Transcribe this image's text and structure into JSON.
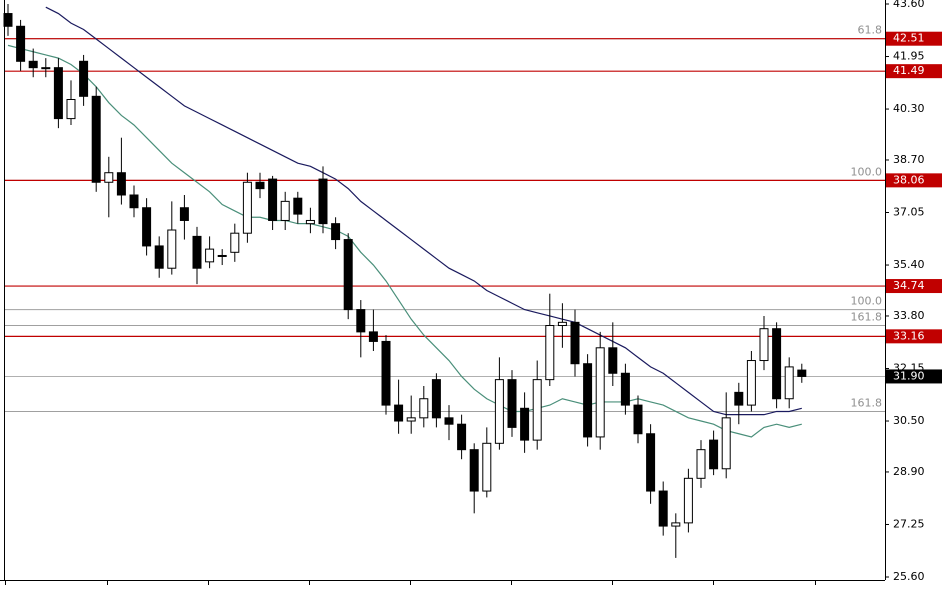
{
  "chart_data": {
    "type": "candlestick",
    "ylim": [
      25.6,
      43.6
    ],
    "yticks": [
      {
        "value": 25.6,
        "label": "25.60"
      },
      {
        "value": 27.25,
        "label": "27.25"
      },
      {
        "value": 28.9,
        "label": "28.90"
      },
      {
        "value": 30.5,
        "label": "30.50"
      },
      {
        "value": 32.15,
        "label": "32.15"
      },
      {
        "value": 33.8,
        "label": "33.80"
      },
      {
        "value": 35.4,
        "label": "35.40"
      },
      {
        "value": 37.05,
        "label": "37.05"
      },
      {
        "value": 38.7,
        "label": "38.70"
      },
      {
        "value": 40.3,
        "label": "40.30"
      },
      {
        "value": 41.95,
        "label": "41.95"
      },
      {
        "value": 43.6,
        "label": "43.60"
      }
    ],
    "open": [
      43.3,
      42.9,
      41.8,
      41.6,
      41.6,
      40.0,
      41.8,
      40.7,
      38.0,
      38.3,
      37.6,
      37.2,
      36.0,
      35.3,
      37.2,
      36.3,
      35.5,
      35.7,
      35.8,
      36.4,
      38.0,
      38.1,
      36.8,
      37.5,
      36.7,
      38.1,
      36.7,
      36.2,
      34.0,
      33.3,
      33.0,
      31.0,
      30.5,
      30.6,
      31.8,
      30.6,
      30.4,
      29.6,
      28.3,
      29.8,
      31.8,
      30.9,
      29.9,
      31.8,
      33.5,
      33.6,
      32.3,
      30.0,
      32.8,
      32.0,
      31.0,
      30.1,
      28.3,
      27.2,
      27.3,
      28.7,
      29.9,
      29.0,
      31.4,
      31.0,
      32.4,
      33.4,
      31.2,
      32.1
    ],
    "high": [
      43.6,
      43.1,
      42.2,
      41.9,
      41.9,
      41.2,
      42.0,
      41.0,
      38.8,
      39.4,
      37.9,
      37.5,
      36.3,
      37.4,
      37.6,
      36.6,
      36.3,
      35.9,
      36.7,
      38.3,
      38.3,
      38.2,
      37.7,
      37.7,
      37.2,
      38.5,
      36.9,
      36.4,
      34.3,
      34.0,
      33.2,
      31.8,
      31.3,
      31.6,
      32.0,
      31.0,
      30.7,
      29.8,
      30.3,
      32.5,
      32.1,
      31.4,
      32.4,
      34.5,
      34.2,
      34.0,
      32.6,
      33.3,
      33.6,
      32.3,
      31.3,
      30.4,
      28.6,
      27.6,
      29.0,
      29.9,
      30.2,
      31.4,
      31.7,
      32.7,
      33.8,
      33.6,
      32.5,
      32.3
    ],
    "low": [
      42.6,
      41.5,
      41.3,
      41.3,
      39.7,
      39.8,
      40.4,
      37.7,
      36.9,
      37.3,
      36.9,
      35.7,
      35.0,
      35.1,
      36.2,
      34.8,
      35.3,
      35.4,
      35.5,
      36.1,
      37.5,
      36.5,
      36.5,
      36.7,
      36.4,
      36.4,
      35.9,
      33.7,
      32.5,
      32.7,
      30.7,
      30.1,
      30.1,
      30.3,
      30.3,
      29.9,
      29.3,
      27.6,
      28.1,
      29.6,
      30.0,
      29.5,
      29.6,
      31.6,
      32.8,
      31.9,
      29.7,
      29.6,
      31.6,
      30.7,
      29.8,
      27.9,
      26.9,
      26.2,
      27.0,
      28.4,
      28.8,
      28.7,
      30.4,
      30.8,
      32.1,
      30.9,
      30.9,
      31.7
    ],
    "close": [
      42.9,
      41.8,
      41.6,
      41.6,
      40.0,
      40.6,
      40.7,
      38.0,
      38.3,
      37.6,
      37.2,
      36.0,
      35.3,
      36.5,
      36.8,
      35.3,
      35.9,
      35.7,
      36.4,
      38.0,
      37.8,
      36.8,
      37.4,
      37.0,
      36.8,
      36.7,
      36.2,
      34.0,
      33.3,
      33.0,
      31.0,
      30.5,
      30.6,
      31.2,
      30.6,
      30.4,
      29.6,
      28.3,
      29.8,
      31.8,
      30.3,
      29.9,
      31.8,
      33.5,
      33.6,
      32.3,
      30.0,
      32.8,
      32.0,
      31.0,
      30.1,
      28.3,
      27.2,
      27.3,
      28.7,
      29.6,
      29.0,
      30.6,
      31.0,
      32.4,
      33.4,
      31.2,
      32.2,
      31.9
    ],
    "series": [
      {
        "color": "#1a1a5e",
        "values": [
          null,
          null,
          null,
          43.5,
          43.3,
          43.0,
          42.8,
          42.5,
          42.2,
          41.9,
          41.6,
          41.3,
          41.0,
          40.7,
          40.4,
          40.2,
          40.0,
          39.8,
          39.6,
          39.4,
          39.2,
          39.0,
          38.8,
          38.6,
          38.5,
          38.3,
          38.1,
          37.8,
          37.4,
          37.1,
          36.8,
          36.5,
          36.2,
          35.9,
          35.6,
          35.3,
          35.1,
          34.9,
          34.6,
          34.4,
          34.2,
          34.0,
          33.9,
          33.8,
          33.7,
          33.6,
          33.4,
          33.2,
          33.0,
          32.8,
          32.5,
          32.2,
          32.0,
          31.7,
          31.4,
          31.1,
          30.8,
          30.7,
          30.7,
          30.7,
          30.7,
          30.8,
          30.8,
          30.9
        ]
      },
      {
        "color": "#4a8f7a",
        "values": [
          42.3,
          42.2,
          42.1,
          42.0,
          41.9,
          41.7,
          41.4,
          41.0,
          40.5,
          40.1,
          39.8,
          39.4,
          39.0,
          38.6,
          38.3,
          38.0,
          37.7,
          37.3,
          37.1,
          36.9,
          36.9,
          36.8,
          36.8,
          36.7,
          36.7,
          36.6,
          36.5,
          36.3,
          35.8,
          35.4,
          34.9,
          34.3,
          33.7,
          33.2,
          32.8,
          32.4,
          31.9,
          31.5,
          31.2,
          31.0,
          30.8,
          30.8,
          30.9,
          31.0,
          31.2,
          31.1,
          31.0,
          31.1,
          31.1,
          31.1,
          31.2,
          31.1,
          31.0,
          30.8,
          30.6,
          30.5,
          30.4,
          30.2,
          30.1,
          30.0,
          30.3,
          30.4,
          30.3,
          30.4
        ]
      }
    ],
    "levels": [
      42.51,
      41.49,
      38.06,
      34.74,
      33.16
    ],
    "level_color": "#c00000",
    "fib_levels": [
      {
        "value": 42.51,
        "label": "61.8"
      },
      {
        "value": 38.06,
        "label": "100.0"
      },
      {
        "value": 34.0,
        "label": "100.0"
      },
      {
        "value": 33.5,
        "label": "161.8"
      },
      {
        "value": 30.8,
        "label": "161.8"
      }
    ],
    "last_price": {
      "value": 31.9,
      "label": "31.90"
    }
  }
}
